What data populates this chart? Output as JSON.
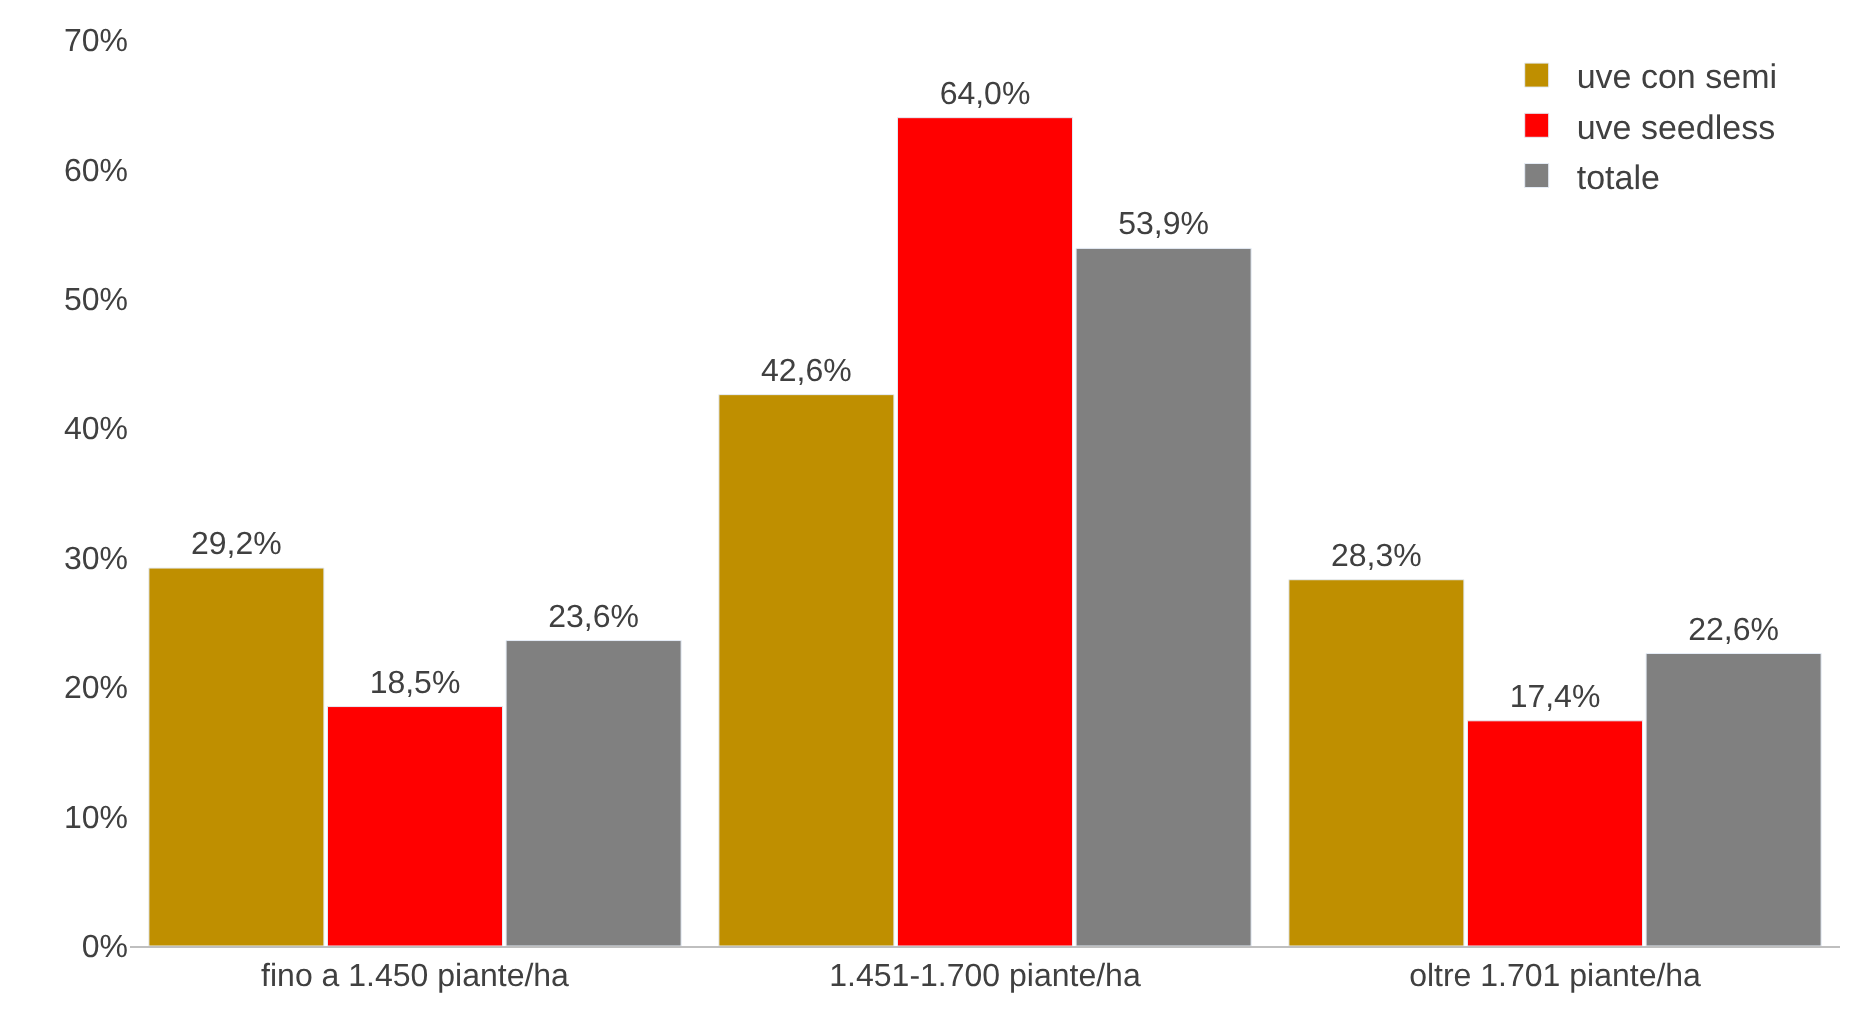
{
  "chart_data": {
    "type": "bar",
    "categories": [
      "fino a 1.450 piante/ha",
      "1.451-1.700 piante/ha",
      "oltre 1.701 piante/ha"
    ],
    "series": [
      {
        "name": "uve con semi",
        "color": "#bf8f00",
        "values": [
          29.2,
          42.6,
          28.3
        ],
        "value_labels": [
          "29,2%",
          "42,6%",
          "28,3%"
        ]
      },
      {
        "name": "uve seedless",
        "color": "#ff0000",
        "values": [
          18.5,
          64.0,
          17.4
        ],
        "value_labels": [
          "18,5%",
          "64,0%",
          "17,4%"
        ]
      },
      {
        "name": "totale",
        "color": "#808080",
        "values": [
          23.6,
          53.9,
          22.6
        ],
        "value_labels": [
          "23,6%",
          "53,9%",
          "22,6%"
        ]
      }
    ],
    "ylim": [
      0,
      70
    ],
    "yticks": [
      {
        "value": 0,
        "label": "0%"
      },
      {
        "value": 10,
        "label": "10%"
      },
      {
        "value": 20,
        "label": "20%"
      },
      {
        "value": 30,
        "label": "30%"
      },
      {
        "value": 40,
        "label": "40%"
      },
      {
        "value": 50,
        "label": "50%"
      },
      {
        "value": 60,
        "label": "60%"
      },
      {
        "value": 70,
        "label": "70%"
      }
    ],
    "legend": "top right"
  }
}
